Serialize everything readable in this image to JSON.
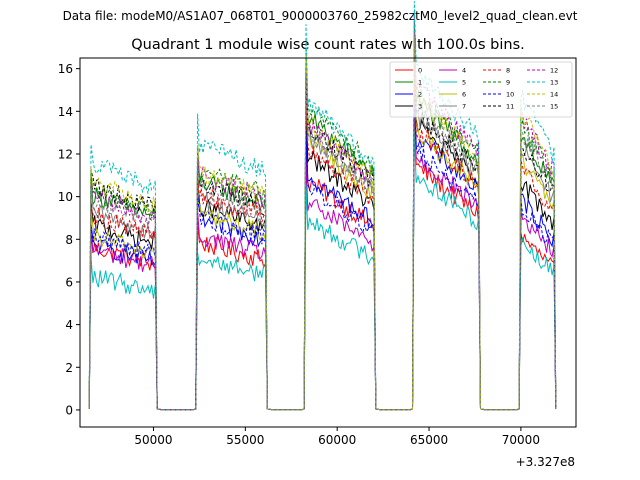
{
  "suptitle": "Data file: modeM0/AS1A07_068T01_9000003760_25982cztM0_level2_quad_clean.evt",
  "chart_data": {
    "type": "line",
    "title": "Quadrant 1 module wise count rates with 100.0s bins.",
    "xlabel": "",
    "ylabel": "",
    "x_offset_label": "+3.327e8",
    "xlim": [
      46000,
      73000
    ],
    "ylim": [
      -0.8,
      16.5
    ],
    "x_ticks": [
      50000,
      55000,
      60000,
      65000,
      70000
    ],
    "x_tick_labels": [
      "50000",
      "55000",
      "60000",
      "65000",
      "70000"
    ],
    "y_ticks": [
      0,
      2,
      4,
      6,
      8,
      10,
      12,
      14,
      16
    ],
    "y_tick_labels": [
      "0",
      "2",
      "4",
      "6",
      "8",
      "10",
      "12",
      "14",
      "16"
    ],
    "grid": false,
    "legend_position": "top-right",
    "orbit_segments": [
      {
        "start": 46500,
        "end": 50200,
        "gap_end": 52300
      },
      {
        "start": 52300,
        "end": 56200,
        "gap_end": 58200
      },
      {
        "start": 58200,
        "end": 62100,
        "gap_end": 64100
      },
      {
        "start": 64100,
        "end": 67800,
        "gap_end": 69900
      },
      {
        "start": 69900,
        "end": 71900,
        "gap_end": null
      }
    ],
    "segment_notes": "x values in seconds relative to offset; count rate drops to 0 between segments",
    "series": [
      {
        "name": "0",
        "color": "#ff0000",
        "dash": "solid",
        "levels": [
          7.1,
          7.3,
          9.2,
          9.8,
          7.0
        ]
      },
      {
        "name": "1",
        "color": "#008000",
        "dash": "solid",
        "levels": [
          9.4,
          10.0,
          11.8,
          12.5,
          11.0
        ]
      },
      {
        "name": "2",
        "color": "#0000ff",
        "dash": "solid",
        "levels": [
          7.2,
          8.3,
          9.4,
          11.0,
          8.5
        ]
      },
      {
        "name": "3",
        "color": "#000000",
        "dash": "solid",
        "levels": [
          8.1,
          8.9,
          10.2,
          11.5,
          9.2
        ]
      },
      {
        "name": "4",
        "color": "#bf00bf",
        "dash": "solid",
        "levels": [
          7.0,
          7.6,
          8.3,
          10.2,
          7.8
        ]
      },
      {
        "name": "5",
        "color": "#00bfbf",
        "dash": "solid",
        "levels": [
          5.8,
          6.6,
          7.6,
          9.4,
          6.8
        ]
      },
      {
        "name": "6",
        "color": "#bfbf00",
        "dash": "solid",
        "levels": [
          7.6,
          8.6,
          10.8,
          11.2,
          10.0
        ]
      },
      {
        "name": "7",
        "color": "#808080",
        "dash": "solid",
        "levels": [
          8.6,
          9.2,
          11.0,
          11.8,
          10.5
        ]
      },
      {
        "name": "8",
        "color": "#ff0000",
        "dash": "dashed",
        "levels": [
          8.5,
          9.4,
          10.5,
          11.3,
          9.8
        ]
      },
      {
        "name": "9",
        "color": "#008000",
        "dash": "dashed",
        "levels": [
          9.6,
          10.5,
          12.2,
          12.9,
          11.5
        ]
      },
      {
        "name": "10",
        "color": "#0000ff",
        "dash": "dashed",
        "levels": [
          7.6,
          8.4,
          9.0,
          10.4,
          8.2
        ]
      },
      {
        "name": "11",
        "color": "#000000",
        "dash": "dashed",
        "levels": [
          9.8,
          9.9,
          11.4,
          12.0,
          10.7
        ]
      },
      {
        "name": "12",
        "color": "#bf00bf",
        "dash": "dashed",
        "levels": [
          9.3,
          10.3,
          11.5,
          13.0,
          11.8
        ]
      },
      {
        "name": "13",
        "color": "#00bfbf",
        "dash": "dashed",
        "levels": [
          10.8,
          11.6,
          12.4,
          13.6,
          12.6
        ]
      },
      {
        "name": "14",
        "color": "#bfbf00",
        "dash": "dashed",
        "levels": [
          9.9,
          10.4,
          11.6,
          12.6,
          12.0
        ]
      },
      {
        "name": "15",
        "color": "#808080",
        "dash": "dashed",
        "levels": [
          9.2,
          9.7,
          11.1,
          12.2,
          11.2
        ]
      }
    ]
  }
}
